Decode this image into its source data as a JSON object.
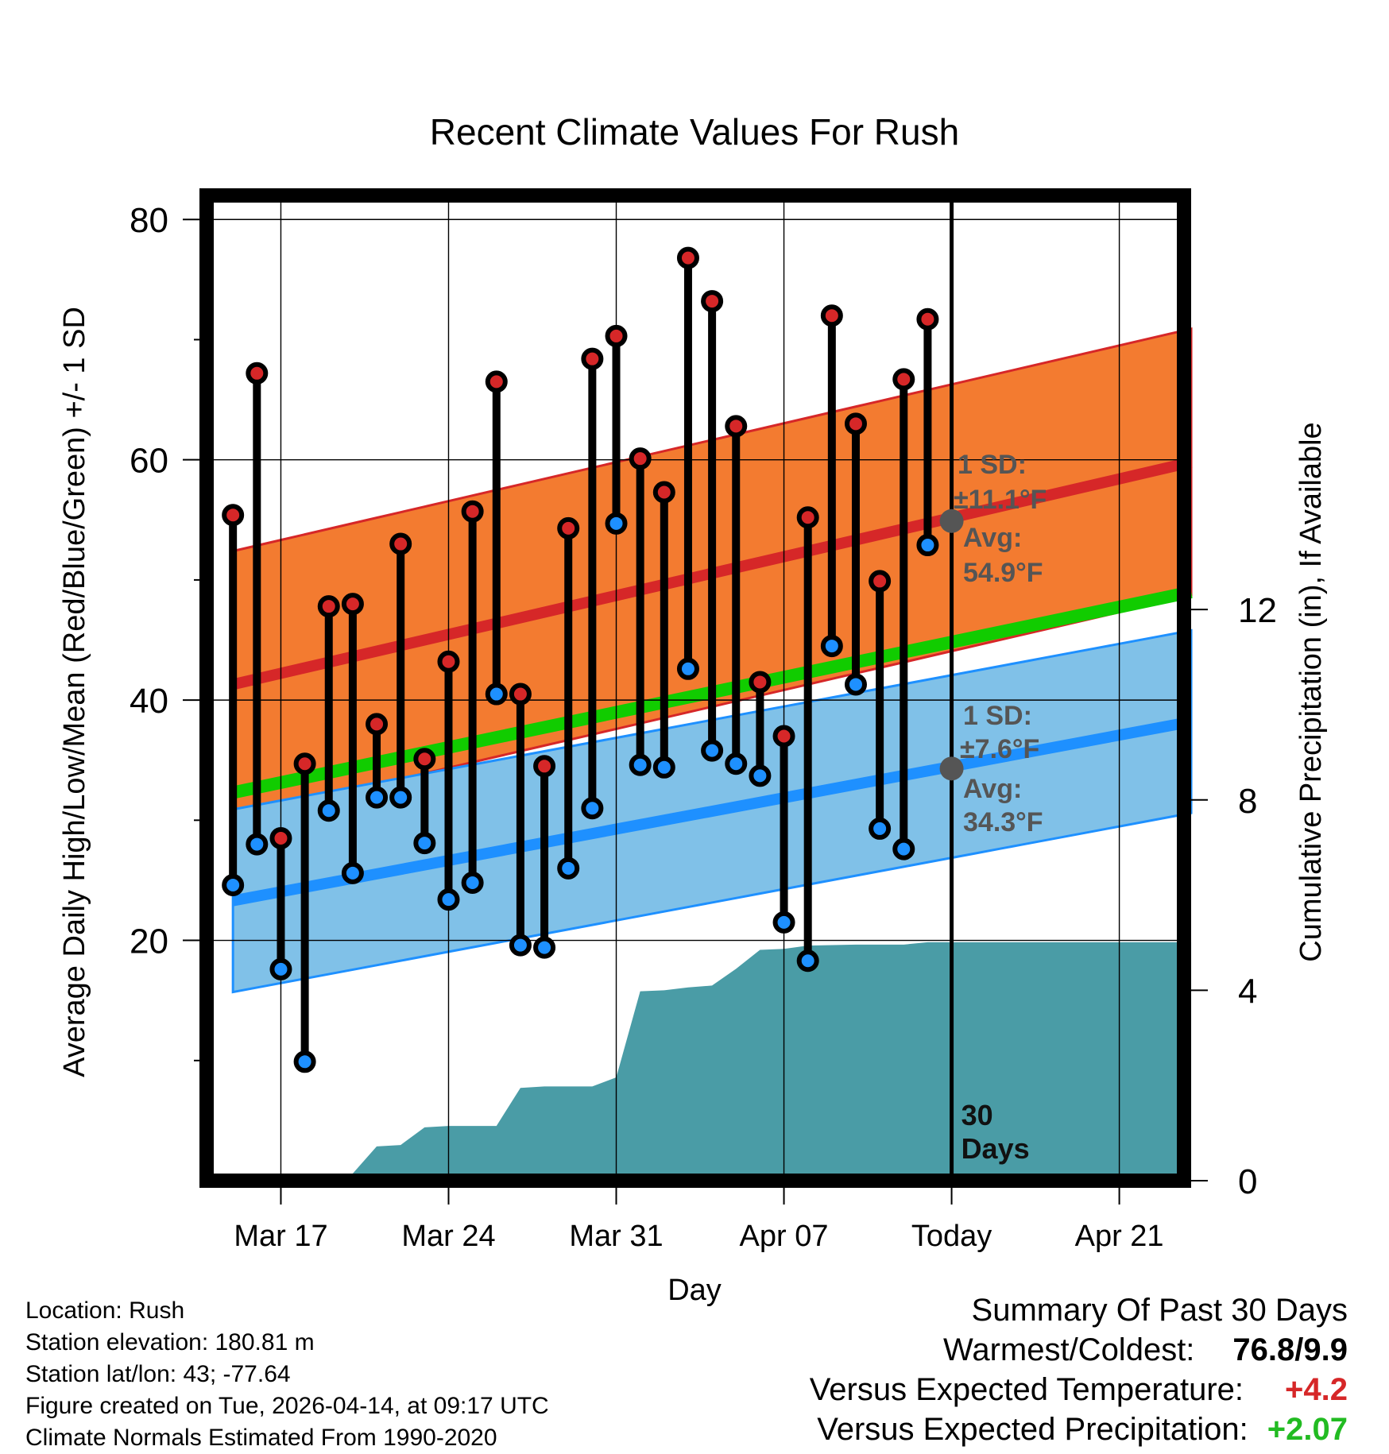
{
  "chart_data": {
    "type": "range-line",
    "title": "Recent Climate Values For Rush",
    "xlabel": "Day",
    "ylabel_left": "Average Daily High/Low/Mean (Red/Blue/Green) +/- 1 SD",
    "ylabel_right": "Cumulative Precipitation (in), If Available",
    "x_tick_labels": [
      "Mar 17",
      "Mar 24",
      "Mar 31",
      "Apr 07",
      "Today",
      "Apr 21"
    ],
    "x_tick_days": [
      3,
      10,
      17,
      24,
      31,
      38
    ],
    "xlim": [
      -0.1,
      40.7
    ],
    "ylim_left": [
      0,
      82
    ],
    "y_ticks_left": [
      "20",
      "40",
      "60",
      "80"
    ],
    "y_tick_values_left": [
      20,
      40,
      60,
      80
    ],
    "ylim_right": [
      0,
      20.7
    ],
    "y_ticks_right": [
      "0",
      "4",
      "8",
      "12"
    ],
    "y_tick_values_right": [
      0,
      4,
      8,
      12
    ],
    "today_day": 31,
    "today_label": "30 Days",
    "days": [
      1,
      2,
      3,
      4,
      5,
      6,
      7,
      8,
      9,
      10,
      11,
      12,
      13,
      14,
      15,
      16,
      17,
      18,
      19,
      20,
      21,
      22,
      23,
      24,
      25,
      26,
      27,
      28,
      29,
      30
    ],
    "highs": [
      55.4,
      67.2,
      28.5,
      34.7,
      47.8,
      48.0,
      38.0,
      53.0,
      35.1,
      43.2,
      55.7,
      66.5,
      40.5,
      34.5,
      54.3,
      68.4,
      70.3,
      60.1,
      57.3,
      76.8,
      73.2,
      62.8,
      41.5,
      37.0,
      55.2,
      72.0,
      63.0,
      49.9,
      66.7,
      71.7
    ],
    "lows": [
      24.6,
      28.0,
      17.6,
      9.9,
      30.8,
      25.6,
      31.9,
      31.9,
      28.1,
      23.4,
      24.8,
      40.5,
      19.6,
      19.4,
      26.0,
      31.0,
      54.7,
      34.6,
      34.4,
      42.6,
      35.8,
      34.7,
      33.7,
      21.5,
      18.3,
      44.5,
      41.3,
      29.3,
      27.6,
      52.9
    ],
    "normal_high_range": [
      1,
      41
    ],
    "normal_high_mean": [
      41.3,
      59.8
    ],
    "normal_high_sd": 11.1,
    "normal_low_mean": [
      23.3,
      38.2
    ],
    "normal_low_sd": 7.6,
    "normal_mean": [
      32.3,
      49.0
    ],
    "precip_days": [
      1,
      2,
      4,
      6,
      7,
      8,
      9,
      10,
      11,
      12,
      13,
      14,
      15,
      16,
      17,
      18,
      19,
      20,
      21,
      22,
      23,
      24,
      25,
      27,
      29,
      30,
      41
    ],
    "precip_cumul": [
      0.0,
      0.15,
      0.15,
      0.15,
      0.72,
      0.75,
      1.12,
      1.15,
      1.15,
      1.15,
      1.95,
      1.98,
      1.98,
      1.98,
      2.17,
      3.98,
      4.0,
      4.06,
      4.1,
      4.45,
      4.85,
      4.87,
      4.94,
      4.96,
      4.96,
      5.01,
      5.01
    ],
    "annotations": {
      "high": {
        "sd_label": "1 SD:",
        "sd_value": "±11.1°F",
        "avg_label": "Avg:",
        "avg_value": "54.9°F",
        "avg": 54.9
      },
      "low": {
        "sd_label": "1 SD:",
        "sd_value": "±7.6°F",
        "avg_label": "Avg:",
        "avg_value": "34.3°F",
        "avg": 34.3
      }
    }
  },
  "colors": {
    "high_band": "#f37b30",
    "high_line": "#d62728",
    "low_band": "#80c1e8",
    "low_line": "#1e90ff",
    "mean_line": "#11cc00",
    "precip": "#4a9ca6",
    "high_dot": "#d62728",
    "low_dot": "#1e90ff",
    "annotation": "#555555"
  },
  "info": {
    "location": "Location: Rush",
    "elevation": "Station elevation: 180.81 m",
    "latlon": "Station lat/lon: 43; -77.64",
    "created": "Figure created on Tue, 2026-04-14, at 09:17 UTC",
    "normals": "Climate Normals Estimated From 1990-2020"
  },
  "summary": {
    "title": "Summary Of Past 30 Days",
    "warm_cold_label": "Warmest/Coldest:",
    "warm_cold_value": "76.8/9.9",
    "temp_label": "Versus Expected Temperature:",
    "temp_value": "+4.2",
    "precip_label": "Versus Expected Precipitation:",
    "precip_value": "+2.07"
  }
}
